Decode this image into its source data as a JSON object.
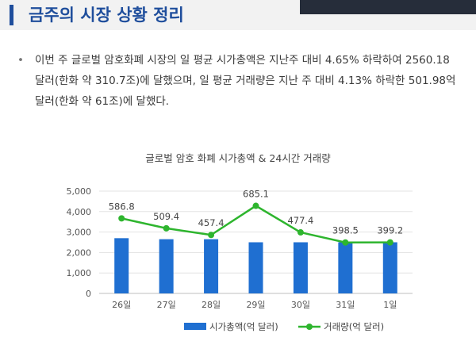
{
  "header": {
    "title": "금주의 시장 상황 정리"
  },
  "summary": {
    "bullet": "•",
    "text": "이번 주 글로벌 암호화폐 시장의 일 평균 시가총액은 지난주 대비 4.65% 하락하여 2560.18 달러(한화 약 310.7조)에 달했으며, 일 평균 거래량은 지난 주 대비 4.13% 하락한 501.98억 달러(한화 약 61조)에 달했다."
  },
  "colors": {
    "bar": "#1f6fd1",
    "line": "#2eb52e",
    "title": "#1f4e9c"
  },
  "chart_data": {
    "type": "bar+line",
    "title": "글로벌 암호 화폐 시가총액 & 24시간 거래량",
    "categories": [
      "26일",
      "27일",
      "28일",
      "29일",
      "30일",
      "31일",
      "1일"
    ],
    "yticks": [
      "0",
      "1,000",
      "2,000",
      "3,000",
      "4,000",
      "5,000"
    ],
    "ylim": [
      0,
      5000
    ],
    "legend_position": "bottom",
    "series": [
      {
        "name": "시가총액(억 달러)",
        "type": "bar",
        "values": [
          2700,
          2650,
          2650,
          2500,
          2500,
          2500,
          2500
        ]
      },
      {
        "name": "거래량(억 달러)",
        "type": "line",
        "values": [
          586.8,
          509.4,
          457.4,
          685.1,
          477.4,
          398.5,
          399.2
        ],
        "labels": [
          "586.8",
          "509.4",
          "457.4",
          "685.1",
          "477.4",
          "398.5",
          "399.2"
        ]
      }
    ]
  }
}
